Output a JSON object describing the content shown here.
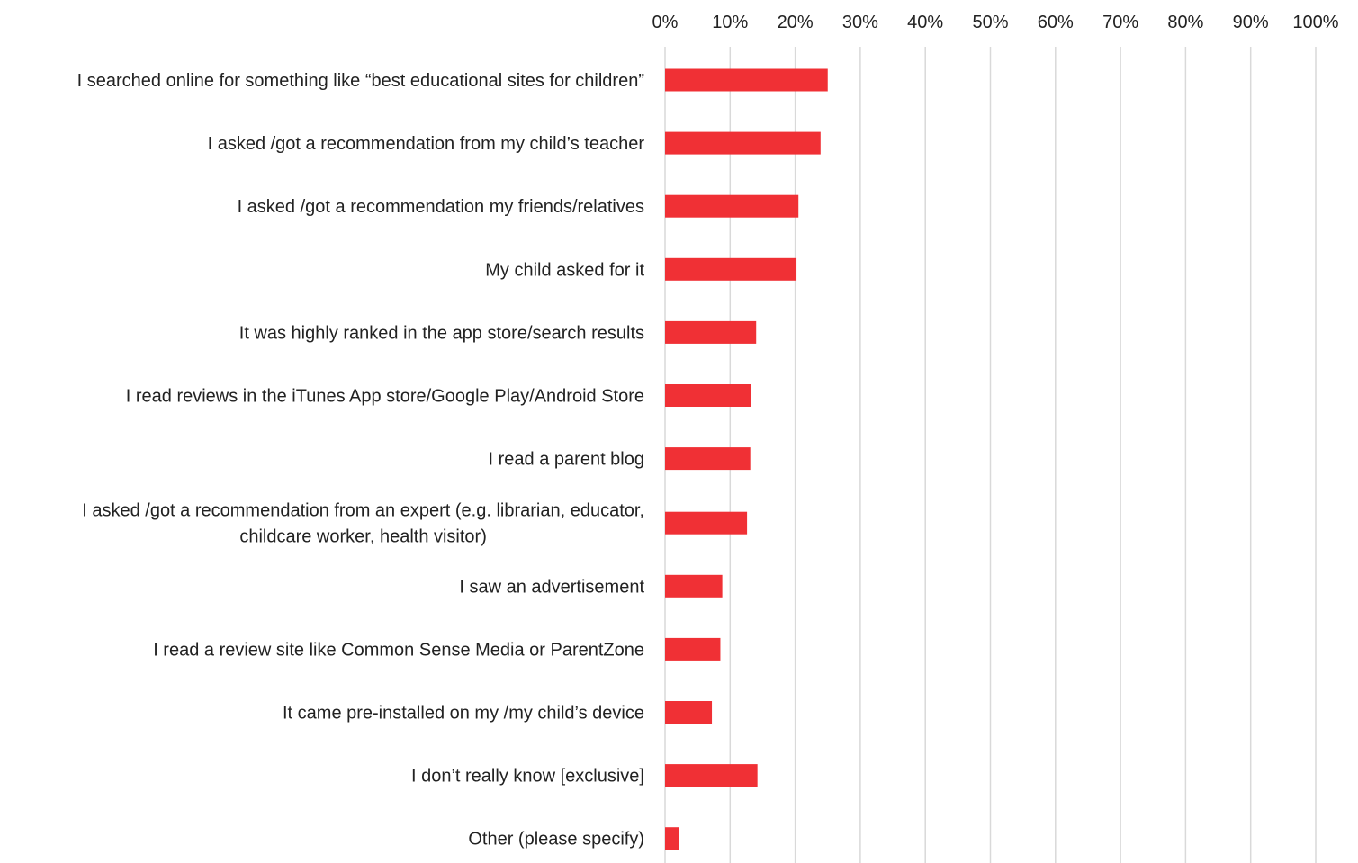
{
  "chart_data": {
    "type": "bar",
    "orientation": "horizontal",
    "title": "",
    "xlabel": "",
    "ylabel": "",
    "xlim": [
      0,
      100
    ],
    "x_ticks": [
      "0%",
      "10%",
      "20%",
      "30%",
      "40%",
      "50%",
      "60%",
      "70%",
      "80%",
      "90%",
      "100%"
    ],
    "x_axis_position": "top",
    "grid": true,
    "legend": "none",
    "bar_color": "#f03035",
    "categories": [
      [
        "I searched online for something like “best educational sites for children”"
      ],
      [
        "I asked /got a recommendation from my child’s teacher"
      ],
      [
        "I asked /got a recommendation my friends/relatives"
      ],
      [
        "My child asked for it"
      ],
      [
        "It was highly ranked in the app store/search results"
      ],
      [
        "I read reviews in the iTunes App store/Google Play/Android Store"
      ],
      [
        "I read a parent blog"
      ],
      [
        "I asked /got a recommendation from an expert (e.g. librarian, educator,",
        "childcare worker, health visitor)"
      ],
      [
        "I saw an advertisement"
      ],
      [
        "I read a review site like Common Sense Media or ParentZone"
      ],
      [
        "It came pre-installed on my /my child’s device"
      ],
      [
        "I don’t really know [exclusive]"
      ],
      [
        "Other (please specify)"
      ]
    ],
    "values": [
      25.0,
      23.9,
      20.5,
      20.2,
      14.0,
      13.2,
      13.1,
      12.6,
      8.8,
      8.5,
      7.2,
      14.2,
      2.2
    ]
  }
}
